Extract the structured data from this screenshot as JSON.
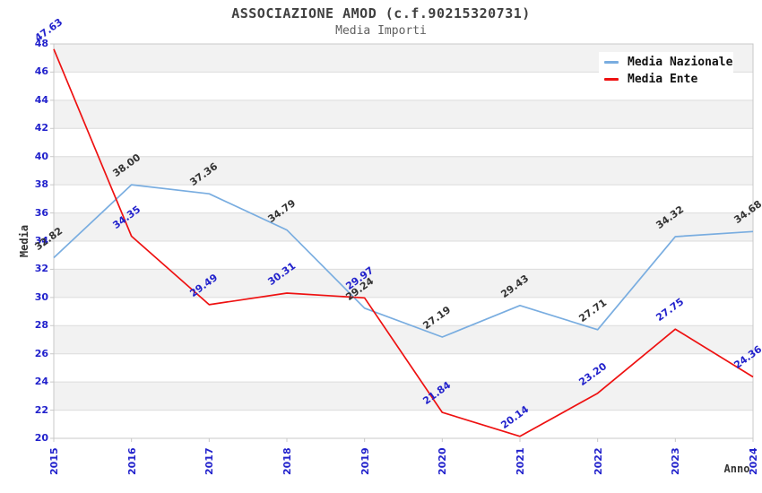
{
  "chart_data": {
    "type": "line",
    "title": "ASSOCIAZIONE AMOD (c.f.90215320731)",
    "subtitle": "Media Importi",
    "xlabel": "Anno",
    "ylabel": "Media",
    "x": [
      2015,
      2016,
      2017,
      2018,
      2019,
      2020,
      2021,
      2022,
      2023,
      2024
    ],
    "ylim": [
      20,
      48
    ],
    "ytick_step": 2,
    "grid": "horizontal gridlines with alternating shaded bands",
    "legend_position": "top-right",
    "series": [
      {
        "name": "Media Nazionale",
        "color": "#79ade0",
        "label_color": "#333333",
        "values": [
          32.82,
          38.0,
          37.36,
          34.79,
          29.24,
          27.19,
          29.43,
          27.71,
          34.32,
          34.68
        ]
      },
      {
        "name": "Media Ente",
        "color": "#ee1111",
        "label_color": "#2222cc",
        "values": [
          47.63,
          34.35,
          29.49,
          30.31,
          29.97,
          21.84,
          20.14,
          23.2,
          27.75,
          24.36
        ]
      }
    ],
    "colors": {
      "tick_label": "#2222cc",
      "band_fill": "#f2f2f2",
      "gridline": "#dcdcdc",
      "plot_border": "#c8c8c8",
      "title_text": "#404040",
      "subtitle_text": "#606060"
    }
  }
}
